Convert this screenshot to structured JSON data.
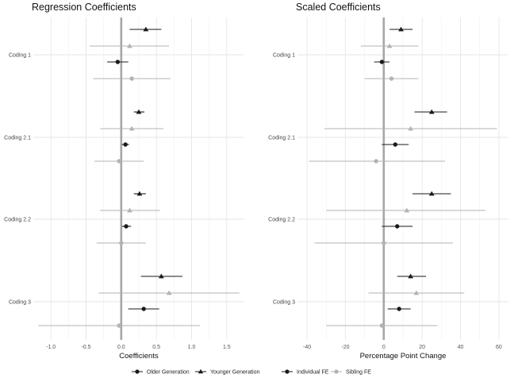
{
  "colors": {
    "older": "#1a1a1a",
    "younger": "#1a1a1a",
    "sibling": "#b3b3b3",
    "zero_line": "#a6a6a6",
    "grid": "#e6e6e6"
  },
  "legend": {
    "items": [
      {
        "label": "Older Generation",
        "marker": "circle",
        "color": "#1a1a1a"
      },
      {
        "label": "Younger Generation",
        "marker": "triangle",
        "color": "#1a1a1a"
      },
      {
        "label": "Individual FE",
        "marker": "circle",
        "color": "#1a1a1a"
      },
      {
        "label": "Sibling FE",
        "marker": "circle",
        "color": "#b3b3b3"
      }
    ]
  },
  "chart_data": [
    {
      "type": "pointrange",
      "title": "Regression Coefficients",
      "xlabel": "Coefficients",
      "xlim": [
        -1.25,
        1.75
      ],
      "xticks": [
        -1.0,
        -0.5,
        0.0,
        0.5,
        1.0,
        1.5
      ],
      "xtick_labels": [
        "-1.0",
        "-0.5",
        "0.0",
        "0.5",
        "1.0",
        "1.5"
      ],
      "categories": [
        "Coding 1",
        "Coding 2.1",
        "Coding 2.2",
        "Coding 3"
      ],
      "points": [
        {
          "cat": "Coding 1",
          "generation": "Younger Generation",
          "fe": "Individual FE",
          "est": 0.35,
          "lo": 0.12,
          "hi": 0.57
        },
        {
          "cat": "Coding 1",
          "generation": "Younger Generation",
          "fe": "Sibling FE",
          "est": 0.12,
          "lo": -0.45,
          "hi": 0.68
        },
        {
          "cat": "Coding 1",
          "generation": "Older Generation",
          "fe": "Individual FE",
          "est": -0.05,
          "lo": -0.2,
          "hi": 0.1
        },
        {
          "cat": "Coding 1",
          "generation": "Older Generation",
          "fe": "Sibling FE",
          "est": 0.15,
          "lo": -0.4,
          "hi": 0.7
        },
        {
          "cat": "Coding 2.1",
          "generation": "Younger Generation",
          "fe": "Individual FE",
          "est": 0.25,
          "lo": 0.18,
          "hi": 0.33
        },
        {
          "cat": "Coding 2.1",
          "generation": "Younger Generation",
          "fe": "Sibling FE",
          "est": 0.15,
          "lo": -0.3,
          "hi": 0.6
        },
        {
          "cat": "Coding 2.1",
          "generation": "Older Generation",
          "fe": "Individual FE",
          "est": 0.06,
          "lo": 0.01,
          "hi": 0.11
        },
        {
          "cat": "Coding 2.1",
          "generation": "Older Generation",
          "fe": "Sibling FE",
          "est": -0.03,
          "lo": -0.38,
          "hi": 0.32
        },
        {
          "cat": "Coding 2.2",
          "generation": "Younger Generation",
          "fe": "Individual FE",
          "est": 0.26,
          "lo": 0.18,
          "hi": 0.35
        },
        {
          "cat": "Coding 2.2",
          "generation": "Younger Generation",
          "fe": "Sibling FE",
          "est": 0.12,
          "lo": -0.3,
          "hi": 0.55
        },
        {
          "cat": "Coding 2.2",
          "generation": "Older Generation",
          "fe": "Individual FE",
          "est": 0.07,
          "lo": 0.01,
          "hi": 0.14
        },
        {
          "cat": "Coding 2.2",
          "generation": "Older Generation",
          "fe": "Sibling FE",
          "est": 0.0,
          "lo": -0.35,
          "hi": 0.35
        },
        {
          "cat": "Coding 3",
          "generation": "Younger Generation",
          "fe": "Individual FE",
          "est": 0.57,
          "lo": 0.28,
          "hi": 0.87
        },
        {
          "cat": "Coding 3",
          "generation": "Younger Generation",
          "fe": "Sibling FE",
          "est": 0.68,
          "lo": -0.32,
          "hi": 1.68
        },
        {
          "cat": "Coding 3",
          "generation": "Older Generation",
          "fe": "Individual FE",
          "est": 0.32,
          "lo": 0.1,
          "hi": 0.54
        },
        {
          "cat": "Coding 3",
          "generation": "Older Generation",
          "fe": "Sibling FE",
          "est": -0.03,
          "lo": -1.18,
          "hi": 1.12
        }
      ]
    },
    {
      "type": "pointrange",
      "title": "Scaled Coefficients",
      "xlabel": "Percentage Point Change",
      "xlim": [
        -45,
        65
      ],
      "xticks": [
        -40,
        -20,
        0,
        20,
        40,
        60
      ],
      "xtick_labels": [
        "-40",
        "-20",
        "0",
        "20",
        "40",
        "60"
      ],
      "categories": [
        "Coding 1",
        "Coding 2.1",
        "Coding 2.2",
        "Coding 3"
      ],
      "points": [
        {
          "cat": "Coding 1",
          "generation": "Younger Generation",
          "fe": "Individual FE",
          "est": 9,
          "lo": 3,
          "hi": 15
        },
        {
          "cat": "Coding 1",
          "generation": "Younger Generation",
          "fe": "Sibling FE",
          "est": 3,
          "lo": -12,
          "hi": 18
        },
        {
          "cat": "Coding 1",
          "generation": "Older Generation",
          "fe": "Individual FE",
          "est": -1,
          "lo": -5,
          "hi": 3
        },
        {
          "cat": "Coding 1",
          "generation": "Older Generation",
          "fe": "Sibling FE",
          "est": 4,
          "lo": -10,
          "hi": 18
        },
        {
          "cat": "Coding 2.1",
          "generation": "Younger Generation",
          "fe": "Individual FE",
          "est": 25,
          "lo": 16,
          "hi": 33
        },
        {
          "cat": "Coding 2.1",
          "generation": "Younger Generation",
          "fe": "Sibling FE",
          "est": 14,
          "lo": -31,
          "hi": 59
        },
        {
          "cat": "Coding 2.1",
          "generation": "Older Generation",
          "fe": "Individual FE",
          "est": 6,
          "lo": -1,
          "hi": 13
        },
        {
          "cat": "Coding 2.1",
          "generation": "Older Generation",
          "fe": "Sibling FE",
          "est": -4,
          "lo": -39,
          "hi": 32
        },
        {
          "cat": "Coding 2.2",
          "generation": "Younger Generation",
          "fe": "Individual FE",
          "est": 25,
          "lo": 15,
          "hi": 35
        },
        {
          "cat": "Coding 2.2",
          "generation": "Younger Generation",
          "fe": "Sibling FE",
          "est": 12,
          "lo": -30,
          "hi": 53
        },
        {
          "cat": "Coding 2.2",
          "generation": "Older Generation",
          "fe": "Individual FE",
          "est": 7,
          "lo": -1,
          "hi": 15
        },
        {
          "cat": "Coding 2.2",
          "generation": "Older Generation",
          "fe": "Sibling FE",
          "est": 0,
          "lo": -36,
          "hi": 36
        },
        {
          "cat": "Coding 3",
          "generation": "Younger Generation",
          "fe": "Individual FE",
          "est": 14,
          "lo": 7,
          "hi": 22
        },
        {
          "cat": "Coding 3",
          "generation": "Younger Generation",
          "fe": "Sibling FE",
          "est": 17,
          "lo": -8,
          "hi": 42
        },
        {
          "cat": "Coding 3",
          "generation": "Older Generation",
          "fe": "Individual FE",
          "est": 8,
          "lo": 2,
          "hi": 14
        },
        {
          "cat": "Coding 3",
          "generation": "Older Generation",
          "fe": "Sibling FE",
          "est": -1,
          "lo": -30,
          "hi": 28
        }
      ]
    }
  ]
}
